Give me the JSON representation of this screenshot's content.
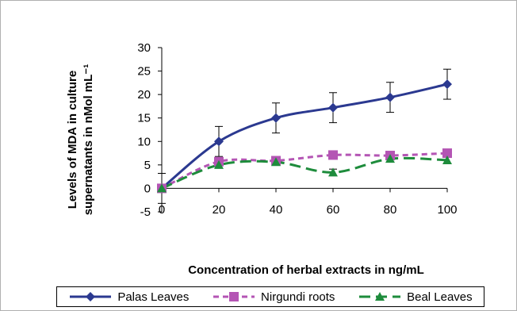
{
  "chart_data": {
    "type": "line",
    "title": "",
    "xlabel": "Concentration of herbal extracts in ng/mL",
    "ylabel_lines": [
      "Levels of MDA in culture",
      "supernatants in nMol mL⁻¹"
    ],
    "x": [
      0,
      20,
      40,
      60,
      80,
      100
    ],
    "xlim": [
      0,
      100
    ],
    "ylim": [
      -5,
      30
    ],
    "xticks": [
      "0",
      "20",
      "40",
      "60",
      "80",
      "100"
    ],
    "yticks": [
      "-5",
      "0",
      "5",
      "10",
      "15",
      "20",
      "25",
      "30"
    ],
    "grid": false,
    "legend_position": "bottom",
    "series": [
      {
        "name": "Palas Leaves",
        "values": [
          0,
          10,
          15,
          17.2,
          19.4,
          22.2
        ],
        "errors": [
          3.2,
          3.2,
          3.2,
          3.2,
          3.2,
          3.2
        ],
        "color": "#2b3990",
        "marker": "diamond",
        "dash": "solid"
      },
      {
        "name": "Nirgundi roots",
        "values": [
          0,
          5.7,
          5.9,
          7.1,
          7.0,
          7.5
        ],
        "errors": [
          0.8,
          0.8,
          0.8,
          0.8,
          0.8,
          0.8
        ],
        "color": "#b455b4",
        "marker": "square",
        "dash": "dashed"
      },
      {
        "name": "Beal Leaves",
        "values": [
          0,
          5.0,
          5.6,
          3.4,
          6.3,
          6.0
        ],
        "errors": [
          0.7,
          0.7,
          0.7,
          0.7,
          0.7,
          0.7
        ],
        "color": "#1e8c3c",
        "marker": "triangle",
        "dash": "longdash"
      }
    ]
  }
}
